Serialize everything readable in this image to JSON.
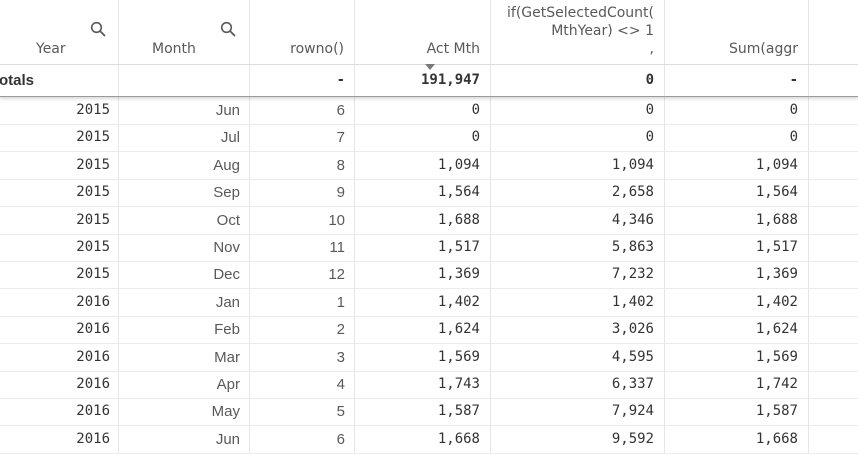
{
  "header": {
    "year": "Year",
    "month": "Month",
    "rowno": "rowno()",
    "act_mth": "Act Mth",
    "expr": "if(GetSelectedCount(\nMthYear) <> 1\n,",
    "sum_aggr": "Sum(aggr"
  },
  "totals": {
    "label": "otals",
    "rowno": "-",
    "act_mth": "191,947",
    "expr": "0",
    "sum_aggr": "-"
  },
  "rows": [
    {
      "year": "2015",
      "month": "Jun",
      "rowno": "6",
      "act": "0",
      "expr": "0",
      "sum": "0"
    },
    {
      "year": "2015",
      "month": "Jul",
      "rowno": "7",
      "act": "0",
      "expr": "0",
      "sum": "0"
    },
    {
      "year": "2015",
      "month": "Aug",
      "rowno": "8",
      "act": "1,094",
      "expr": "1,094",
      "sum": "1,094"
    },
    {
      "year": "2015",
      "month": "Sep",
      "rowno": "9",
      "act": "1,564",
      "expr": "2,658",
      "sum": "1,564"
    },
    {
      "year": "2015",
      "month": "Oct",
      "rowno": "10",
      "act": "1,688",
      "expr": "4,346",
      "sum": "1,688"
    },
    {
      "year": "2015",
      "month": "Nov",
      "rowno": "11",
      "act": "1,517",
      "expr": "5,863",
      "sum": "1,517"
    },
    {
      "year": "2015",
      "month": "Dec",
      "rowno": "12",
      "act": "1,369",
      "expr": "7,232",
      "sum": "1,369"
    },
    {
      "year": "2016",
      "month": "Jan",
      "rowno": "1",
      "act": "1,402",
      "expr": "1,402",
      "sum": "1,402"
    },
    {
      "year": "2016",
      "month": "Feb",
      "rowno": "2",
      "act": "1,624",
      "expr": "3,026",
      "sum": "1,624"
    },
    {
      "year": "2016",
      "month": "Mar",
      "rowno": "3",
      "act": "1,569",
      "expr": "4,595",
      "sum": "1,569"
    },
    {
      "year": "2016",
      "month": "Apr",
      "rowno": "4",
      "act": "1,743",
      "expr": "6,337",
      "sum": "1,742"
    },
    {
      "year": "2016",
      "month": "May",
      "rowno": "5",
      "act": "1,587",
      "expr": "7,924",
      "sum": "1,587"
    },
    {
      "year": "2016",
      "month": "Jun",
      "rowno": "6",
      "act": "1,668",
      "expr": "9,592",
      "sum": "1,668"
    }
  ]
}
